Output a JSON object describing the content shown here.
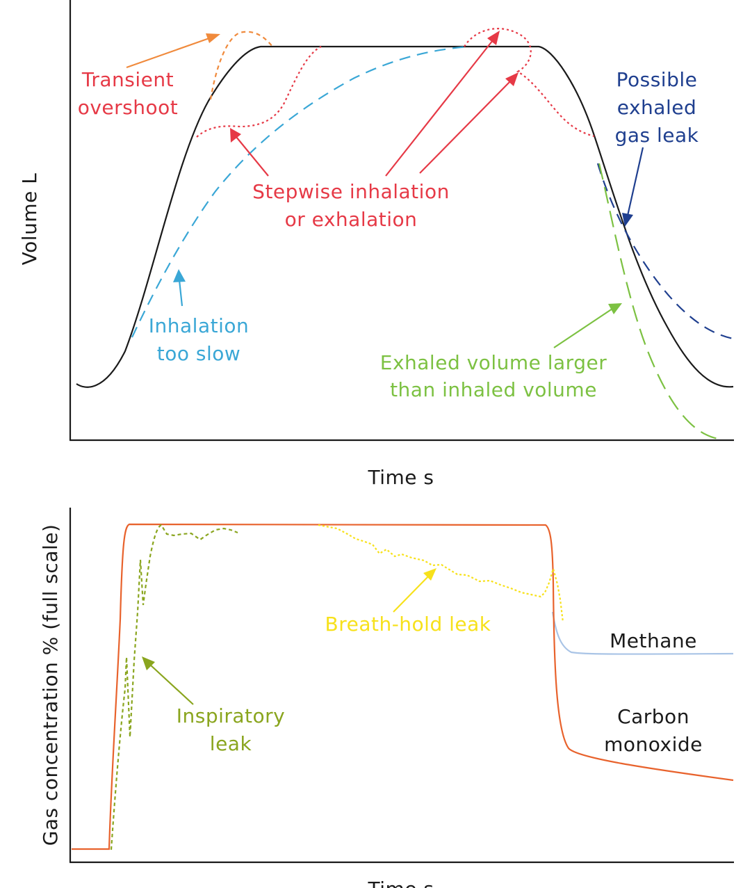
{
  "top_panel": {
    "ylabel": "Volume L",
    "xlabel": "Time s",
    "annotations": {
      "transient_line1": "Transient",
      "transient_line2": "overshoot",
      "possible_line1": "Possible",
      "possible_line2": "exhaled",
      "possible_line3": "gas leak",
      "stepwise_line1": "Stepwise inhalation",
      "stepwise_line2": "or exhalation",
      "inhalation_line1": "Inhalation",
      "inhalation_line2": "too slow",
      "exhaled_line1": "Exhaled volume larger",
      "exhaled_line2": "than inhaled volume"
    }
  },
  "bottom_panel": {
    "ylabel": "Gas concentration % (full scale)",
    "xlabel": "Time s",
    "annotations": {
      "breath_hold": "Breath-hold leak",
      "inspiratory_line1": "Inspiratory",
      "inspiratory_line2": "leak",
      "methane": "Methane",
      "carbon_line1": "Carbon",
      "carbon_line2": "monoxide"
    }
  },
  "colors": {
    "normal": "#1a1a1a",
    "overshoot": "#f08a3c",
    "stepwise": "#e63946",
    "too_slow": "#3aa7d6",
    "exhaled_leak": "#1f3f8f",
    "exhaled_larger": "#7cc142",
    "carbon_monoxide": "#e8622c",
    "methane": "#a9c4e6",
    "inspiratory": "#8aa51e",
    "breath_hold": "#f7e11b"
  }
}
